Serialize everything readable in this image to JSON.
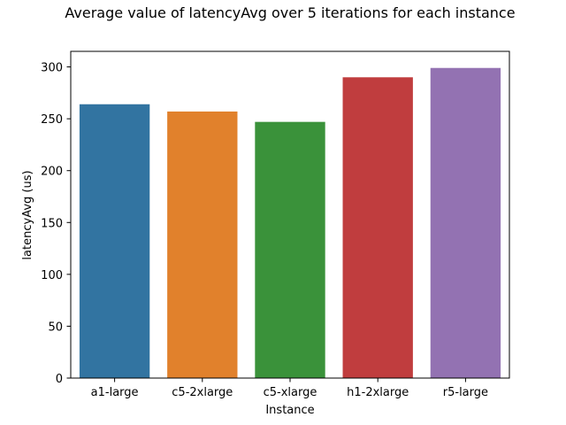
{
  "chart_data": {
    "type": "bar",
    "title": "Average value of latencyAvg over 5 iterations for each instance",
    "xlabel": "Instance",
    "ylabel": "latencyAvg (us)",
    "categories": [
      "a1-large",
      "c5-2xlarge",
      "c5-xlarge",
      "h1-2xlarge",
      "r5-large"
    ],
    "values": [
      264,
      257,
      247,
      290,
      299
    ],
    "colors": [
      "#3274a1",
      "#e1812c",
      "#3a923a",
      "#c03d3e",
      "#9372b2"
    ],
    "ylim": [
      0,
      315
    ],
    "yticks": [
      0,
      50,
      100,
      150,
      200,
      250,
      300
    ],
    "grid": false,
    "legend": "none"
  }
}
